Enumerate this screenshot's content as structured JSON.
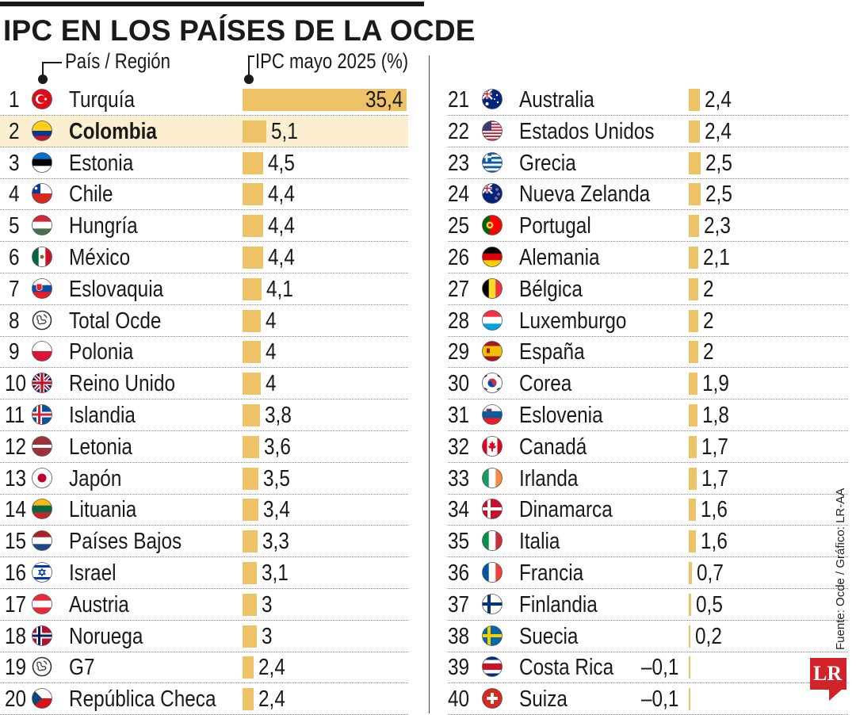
{
  "title": "IPC EN LOS PAÍSES DE LA OCDE",
  "headers": {
    "country": "País / Región",
    "value": "IPC mayo  2025 (%)"
  },
  "source": "Fuente: Ocde / Gráfico: LR-AA",
  "logo_text": "LR",
  "colors": {
    "bar": "#eec266",
    "highlight": "#fcefd0",
    "logo": "#d0232a"
  },
  "chart_data": {
    "type": "bar",
    "title": "IPC EN LOS PAÍSES DE LA OCDE",
    "xlabel": "País / Región",
    "ylabel": "IPC mayo  2025 (%)",
    "highlight": "Colombia",
    "rows": [
      {
        "rank": "1",
        "name": "Turquía",
        "value": 35.4,
        "label": "35,4",
        "flag": "turkey-flag-icon"
      },
      {
        "rank": "2",
        "name": "Colombia",
        "value": 5.1,
        "label": "5,1",
        "flag": "colombia-flag-icon"
      },
      {
        "rank": "3",
        "name": "Estonia",
        "value": 4.5,
        "label": "4,5",
        "flag": "estonia-flag-icon"
      },
      {
        "rank": "4",
        "name": "Chile",
        "value": 4.4,
        "label": "4,4",
        "flag": "chile-flag-icon"
      },
      {
        "rank": "5",
        "name": "Hungría",
        "value": 4.4,
        "label": "4,4",
        "flag": "hungary-flag-icon"
      },
      {
        "rank": "6",
        "name": "México",
        "value": 4.4,
        "label": "4,4",
        "flag": "mexico-flag-icon"
      },
      {
        "rank": "7",
        "name": "Eslovaquia",
        "value": 4.1,
        "label": "4,1",
        "flag": "slovakia-flag-icon"
      },
      {
        "rank": "8",
        "name": "Total Ocde",
        "value": 4,
        "label": "4",
        "flag": "globe-icon"
      },
      {
        "rank": "9",
        "name": "Polonia",
        "value": 4,
        "label": "4",
        "flag": "poland-flag-icon"
      },
      {
        "rank": "10",
        "name": "Reino Unido",
        "value": 4,
        "label": "4",
        "flag": "uk-flag-icon"
      },
      {
        "rank": "11",
        "name": "Islandia",
        "value": 3.8,
        "label": "3,8",
        "flag": "iceland-flag-icon"
      },
      {
        "rank": "12",
        "name": "Letonia",
        "value": 3.6,
        "label": "3,6",
        "flag": "latvia-flag-icon"
      },
      {
        "rank": "13",
        "name": "Japón",
        "value": 3.5,
        "label": "3,5",
        "flag": "japan-flag-icon"
      },
      {
        "rank": "14",
        "name": "Lituania",
        "value": 3.4,
        "label": "3,4",
        "flag": "lithuania-flag-icon"
      },
      {
        "rank": "15",
        "name": "Países Bajos",
        "value": 3.3,
        "label": "3,3",
        "flag": "netherlands-flag-icon"
      },
      {
        "rank": "16",
        "name": "Israel",
        "value": 3.1,
        "label": "3,1",
        "flag": "israel-flag-icon"
      },
      {
        "rank": "17",
        "name": "Austria",
        "value": 3,
        "label": "3",
        "flag": "austria-flag-icon"
      },
      {
        "rank": "18",
        "name": "Noruega",
        "value": 3,
        "label": "3",
        "flag": "norway-flag-icon"
      },
      {
        "rank": "19",
        "name": "G7",
        "value": 2.4,
        "label": "2,4",
        "flag": "globe-icon"
      },
      {
        "rank": "20",
        "name": "República Checa",
        "value": 2.4,
        "label": "2,4",
        "flag": "czechia-flag-icon"
      },
      {
        "rank": "21",
        "name": "Australia",
        "value": 2.4,
        "label": "2,4",
        "flag": "australia-flag-icon"
      },
      {
        "rank": "22",
        "name": "Estados Unidos",
        "value": 2.4,
        "label": "2,4",
        "flag": "usa-flag-icon"
      },
      {
        "rank": "23",
        "name": "Grecia",
        "value": 2.5,
        "label": "2,5",
        "flag": "greece-flag-icon"
      },
      {
        "rank": "24",
        "name": "Nueva Zelanda",
        "value": 2.5,
        "label": "2,5",
        "flag": "new-zealand-flag-icon"
      },
      {
        "rank": "25",
        "name": "Portugal",
        "value": 2.3,
        "label": "2,3",
        "flag": "portugal-flag-icon"
      },
      {
        "rank": "26",
        "name": "Alemania",
        "value": 2.1,
        "label": "2,1",
        "flag": "germany-flag-icon"
      },
      {
        "rank": "27",
        "name": "Bélgica",
        "value": 2,
        "label": "2",
        "flag": "belgium-flag-icon"
      },
      {
        "rank": "28",
        "name": "Luxemburgo",
        "value": 2,
        "label": "2",
        "flag": "luxembourg-flag-icon"
      },
      {
        "rank": "29",
        "name": "España",
        "value": 2,
        "label": "2",
        "flag": "spain-flag-icon"
      },
      {
        "rank": "30",
        "name": "Corea",
        "value": 1.9,
        "label": "1,9",
        "flag": "korea-flag-icon"
      },
      {
        "rank": "31",
        "name": "Eslovenia",
        "value": 1.8,
        "label": "1,8",
        "flag": "slovenia-flag-icon"
      },
      {
        "rank": "32",
        "name": "Canadá",
        "value": 1.7,
        "label": "1,7",
        "flag": "canada-flag-icon"
      },
      {
        "rank": "33",
        "name": "Irlanda",
        "value": 1.7,
        "label": "1,7",
        "flag": "ireland-flag-icon"
      },
      {
        "rank": "34",
        "name": "Dinamarca",
        "value": 1.6,
        "label": "1,6",
        "flag": "denmark-flag-icon"
      },
      {
        "rank": "35",
        "name": "Italia",
        "value": 1.6,
        "label": "1,6",
        "flag": "italy-flag-icon"
      },
      {
        "rank": "36",
        "name": "Francia",
        "value": 0.7,
        "label": "0,7",
        "flag": "france-flag-icon"
      },
      {
        "rank": "37",
        "name": "Finlandia",
        "value": 0.5,
        "label": "0,5",
        "flag": "finland-flag-icon"
      },
      {
        "rank": "38",
        "name": "Suecia",
        "value": 0.2,
        "label": "0,2",
        "flag": "sweden-flag-icon"
      },
      {
        "rank": "39",
        "name": "Costa Rica",
        "value": -0.1,
        "label": "–0,1",
        "flag": "costa-rica-flag-icon"
      },
      {
        "rank": "40",
        "name": "Suiza",
        "value": -0.1,
        "label": "–0,1",
        "flag": "switzerland-flag-icon"
      }
    ]
  }
}
